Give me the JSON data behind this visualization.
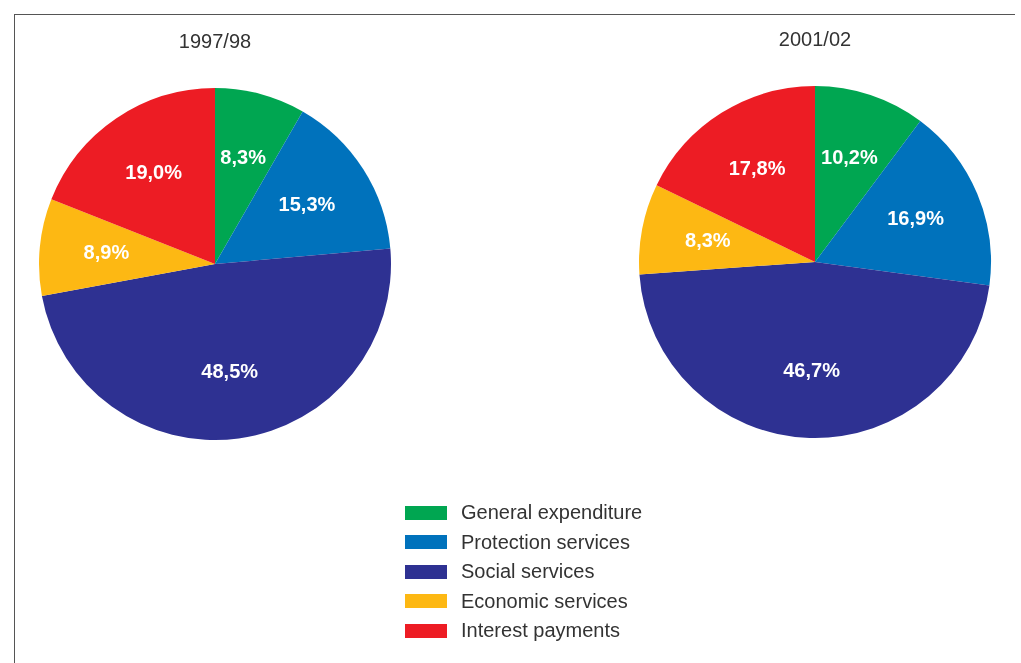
{
  "chart_data": [
    {
      "type": "pie",
      "title": "1997/98",
      "categories": [
        "General expenditure",
        "Protection services",
        "Social services",
        "Economic services",
        "Interest payments"
      ],
      "values": [
        8.3,
        15.3,
        48.5,
        8.9,
        19.0
      ],
      "colors": [
        "#00a651",
        "#0072bc",
        "#2e3192",
        "#fdb813",
        "#ed1c24"
      ],
      "value_labels": [
        "8,3%",
        "15,3%",
        "48,5%",
        "8,9%",
        "19,0%"
      ],
      "legend": "bottom"
    },
    {
      "type": "pie",
      "title": "2001/02",
      "categories": [
        null,
        null,
        null,
        null,
        null
      ],
      "values": [
        10.2,
        16.9,
        46.7,
        8.3,
        17.8
      ],
      "colors": [
        "#00a651",
        "#0072bc",
        "#2e3192",
        "#fdb813",
        "#ed1c24"
      ],
      "value_labels": [
        "10,2%",
        "16,9%",
        "46,7%",
        "8,3%",
        "17,8%"
      ]
    }
  ]
}
